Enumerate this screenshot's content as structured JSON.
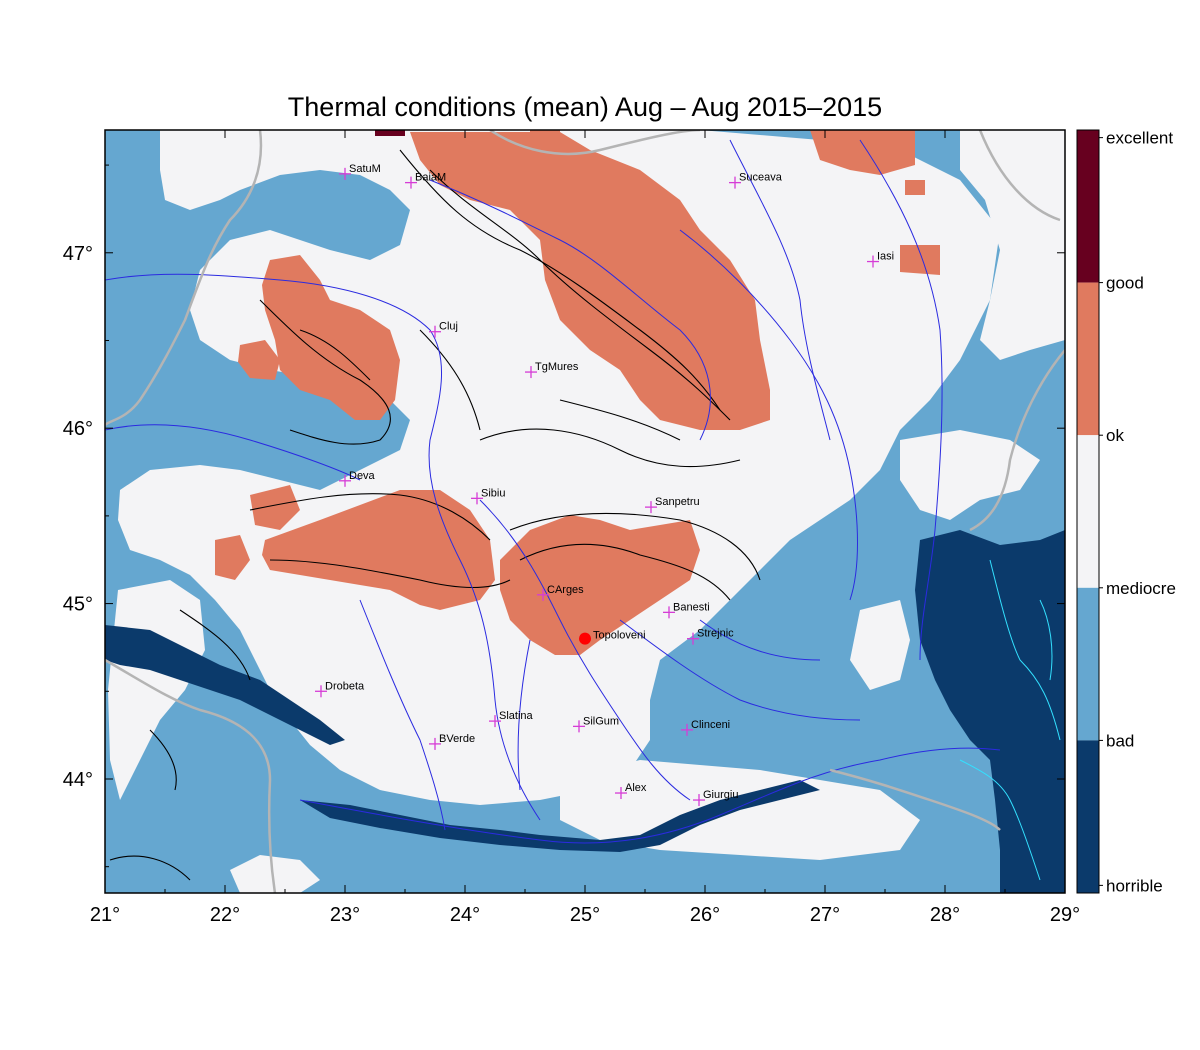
{
  "title": "Thermal conditions (mean) Aug – Aug  2015–2015",
  "lon_ticks": [
    "21°",
    "22°",
    "23°",
    "24°",
    "25°",
    "26°",
    "27°",
    "28°",
    "29°"
  ],
  "lat_ticks": [
    "44°",
    "45°",
    "46°",
    "47°"
  ],
  "legend": [
    {
      "label": "excellent",
      "color": "#67001f"
    },
    {
      "label": "good",
      "color": "#e58267"
    },
    {
      "label": "ok",
      "color": "#f4f4f6"
    },
    {
      "label": "mediocre",
      "color": "#6aaed6"
    },
    {
      "label": "bad",
      "color": "#5fa5d0"
    },
    {
      "label": "horrible",
      "color": "#0b3a6b"
    }
  ],
  "colors": {
    "excellent": "#67001f",
    "good": "#e07a5f",
    "ok": "#f4f4f6",
    "mediocre": "#65a7d0",
    "horrible": "#0b3a6b",
    "river": "#2b2be0",
    "border": "#b4b4b4",
    "city": "#d63cd6",
    "highlight": "#ff0000"
  },
  "cities": [
    {
      "name": "SatuM",
      "lon": 23.0,
      "lat": 47.45
    },
    {
      "name": "BaiaM",
      "lon": 23.55,
      "lat": 47.4
    },
    {
      "name": "Suceava",
      "lon": 26.25,
      "lat": 47.4
    },
    {
      "name": "Iasi",
      "lon": 27.4,
      "lat": 46.95
    },
    {
      "name": "Cluj",
      "lon": 23.75,
      "lat": 46.55
    },
    {
      "name": "TgMures",
      "lon": 24.55,
      "lat": 46.32
    },
    {
      "name": "Deva",
      "lon": 23.0,
      "lat": 45.7
    },
    {
      "name": "Sibiu",
      "lon": 24.1,
      "lat": 45.6
    },
    {
      "name": "Sanpetru",
      "lon": 25.55,
      "lat": 45.55
    },
    {
      "name": "CArges",
      "lon": 24.65,
      "lat": 45.05
    },
    {
      "name": "Banesti",
      "lon": 25.7,
      "lat": 44.95
    },
    {
      "name": "Strejnic",
      "lon": 25.9,
      "lat": 44.8
    },
    {
      "name": "Drobeta",
      "lon": 22.8,
      "lat": 44.5
    },
    {
      "name": "Slatina",
      "lon": 24.25,
      "lat": 44.33
    },
    {
      "name": "SilGum",
      "lon": 24.95,
      "lat": 44.3
    },
    {
      "name": "Clinceni",
      "lon": 25.85,
      "lat": 44.28
    },
    {
      "name": "BVerde",
      "lon": 23.75,
      "lat": 44.2
    },
    {
      "name": "Alex",
      "lon": 25.3,
      "lat": 43.92
    },
    {
      "name": "Giurgiu",
      "lon": 25.95,
      "lat": 43.88
    }
  ],
  "highlight_city": {
    "name": "Topoloveni",
    "lon": 25.0,
    "lat": 44.8
  }
}
